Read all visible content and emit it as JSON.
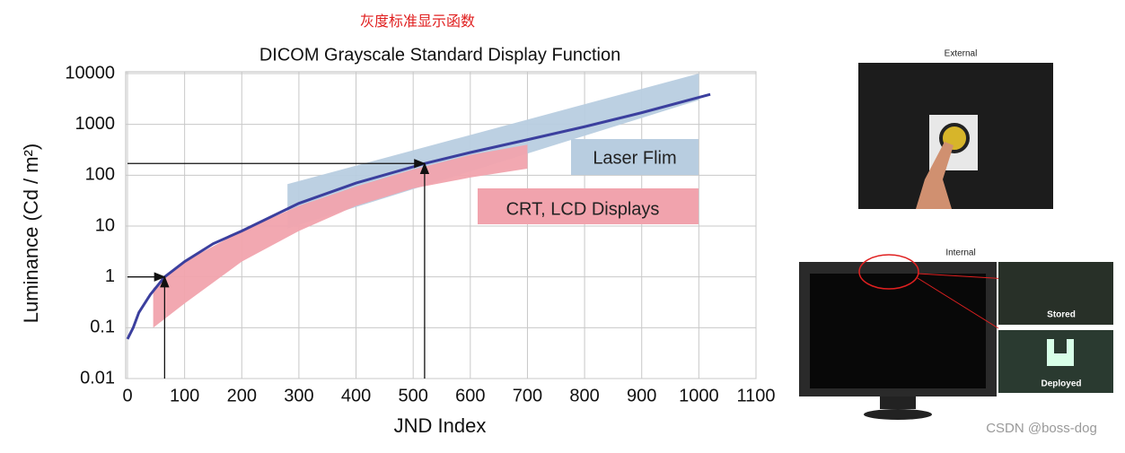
{
  "chart_data": {
    "type": "line",
    "title": "DICOM Grayscale Standard Display Function",
    "caption": "灰度标准显示函数",
    "xlabel": "JND Index",
    "ylabel": "Luminance (Cd / m²)",
    "xlim": [
      0,
      1100
    ],
    "xticks": [
      0,
      100,
      200,
      300,
      400,
      500,
      600,
      700,
      800,
      900,
      1000,
      1100
    ],
    "ylim": [
      0.01,
      10000
    ],
    "yticks": [
      0.01,
      0.1,
      1,
      10,
      100,
      1000,
      10000
    ],
    "log_y": true,
    "grid": true,
    "series": [
      {
        "name": "GSDF",
        "color": "#3b3f9e",
        "x": [
          0,
          10,
          20,
          40,
          65,
          100,
          150,
          200,
          300,
          400,
          520,
          600,
          700,
          800,
          900,
          1020
        ],
        "values": [
          0.06,
          0.1,
          0.2,
          0.45,
          1,
          2,
          4.5,
          8,
          28,
          70,
          170,
          280,
          500,
          900,
          1700,
          3900
        ]
      }
    ],
    "bands": [
      {
        "name": "Laser Flim",
        "color": "#b8cde0",
        "x": [
          280,
          1000
        ],
        "lower": [
          9,
          3000
        ],
        "upper": [
          67,
          10000
        ]
      },
      {
        "name": "CRT, LCD Displays",
        "color": "#f1a3ad",
        "x": [
          45,
          100,
          200,
          300,
          400,
          500,
          600,
          700
        ],
        "lower": [
          0.1,
          0.3,
          2,
          8,
          25,
          55,
          90,
          135
        ],
        "upper": [
          0.6,
          2,
          8,
          25,
          60,
          130,
          250,
          400
        ]
      }
    ],
    "arrows": [
      {
        "x": 65,
        "y": 1
      },
      {
        "x": 520,
        "y": 170
      }
    ]
  },
  "photos": {
    "external": "External",
    "internal": "Internal",
    "stored": "Stored",
    "deployed": "Deployed"
  },
  "watermark": "CSDN @boss-dog"
}
